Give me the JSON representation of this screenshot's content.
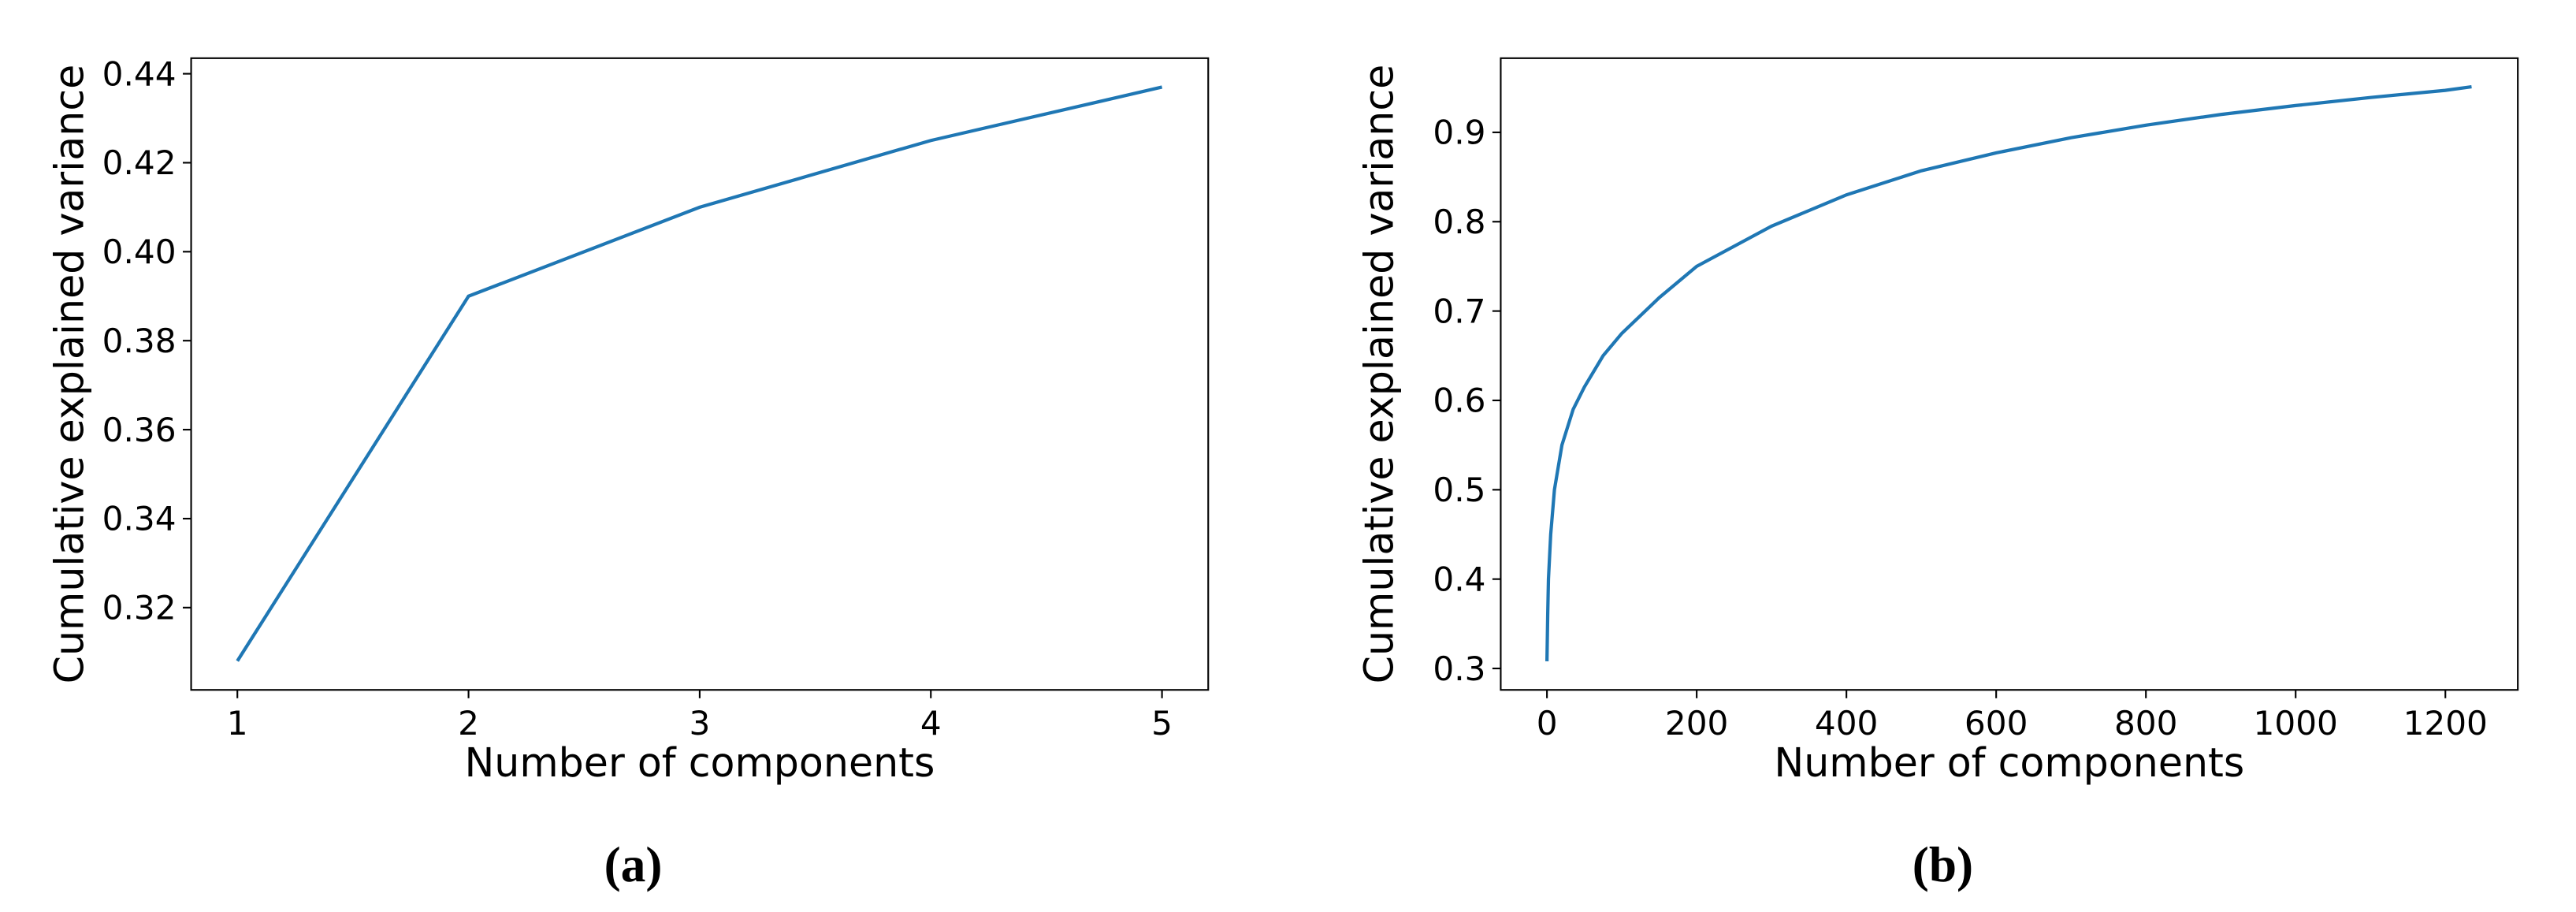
{
  "chart_data": [
    {
      "type": "line",
      "caption": "(a)",
      "xlabel": "Number of components",
      "ylabel": "Cumulative explained variance",
      "x": [
        1,
        2,
        3,
        4,
        5
      ],
      "values": [
        0.308,
        0.39,
        0.41,
        0.425,
        0.437
      ],
      "color": "#1f77b4",
      "xlim": [
        0.8,
        5.2
      ],
      "ylim": [
        0.3015,
        0.4435
      ],
      "xticks": [
        1,
        2,
        3,
        4,
        5
      ],
      "yticks": [
        0.32,
        0.34,
        0.36,
        0.38,
        {
          "value": 0.4,
          "label": "0.40"
        },
        0.42,
        0.44
      ]
    },
    {
      "type": "line",
      "caption": "(b)",
      "xlabel": "Number of components",
      "ylabel": "Cumulative explained variance",
      "x": [
        0,
        1,
        2,
        5,
        10,
        20,
        35,
        50,
        75,
        100,
        150,
        200,
        300,
        400,
        500,
        600,
        700,
        800,
        900,
        1000,
        1100,
        1200,
        1235
      ],
      "values": [
        0.308,
        0.36,
        0.4,
        0.45,
        0.5,
        0.55,
        0.59,
        0.615,
        0.65,
        0.675,
        0.715,
        0.75,
        0.795,
        0.83,
        0.857,
        0.877,
        0.894,
        0.908,
        0.92,
        0.93,
        0.939,
        0.947,
        0.951
      ],
      "color": "#1f77b4",
      "xlim": [
        -61.75,
        1296.75
      ],
      "ylim": [
        0.276,
        0.983
      ],
      "xticks": [
        0,
        200,
        400,
        600,
        800,
        1000,
        1200
      ],
      "yticks": [
        0.3,
        0.4,
        0.5,
        0.6,
        0.7,
        0.8,
        0.9
      ]
    }
  ]
}
